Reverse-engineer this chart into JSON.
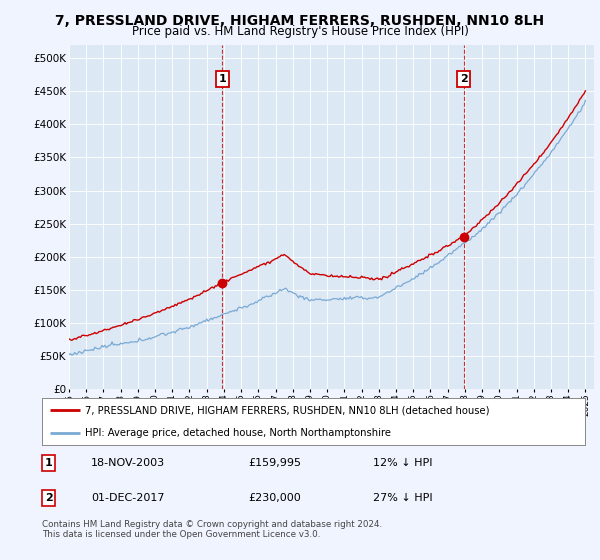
{
  "title": "7, PRESSLAND DRIVE, HIGHAM FERRERS, RUSHDEN, NN10 8LH",
  "subtitle": "Price paid vs. HM Land Registry's House Price Index (HPI)",
  "hpi_label": "HPI: Average price, detached house, North Northamptonshire",
  "property_label": "7, PRESSLAND DRIVE, HIGHAM FERRERS, RUSHDEN, NN10 8LH (detached house)",
  "hpi_color": "#7aaad4",
  "property_color": "#cc0000",
  "background_color": "#f0f4ff",
  "plot_bg_color": "#dde8f5",
  "transaction1_date": "18-NOV-2003",
  "transaction1_price": "£159,995",
  "transaction1_hpi": "12% ↓ HPI",
  "transaction1_year": 2003.9,
  "transaction1_value": 159995,
  "transaction2_date": "01-DEC-2017",
  "transaction2_price": "£230,000",
  "transaction2_hpi": "27% ↓ HPI",
  "transaction2_year": 2017.92,
  "transaction2_value": 230000,
  "ylim": [
    0,
    520000
  ],
  "yticks": [
    0,
    50000,
    100000,
    150000,
    200000,
    250000,
    300000,
    350000,
    400000,
    450000,
    500000
  ],
  "footer": "Contains HM Land Registry data © Crown copyright and database right 2024.\nThis data is licensed under the Open Government Licence v3.0."
}
